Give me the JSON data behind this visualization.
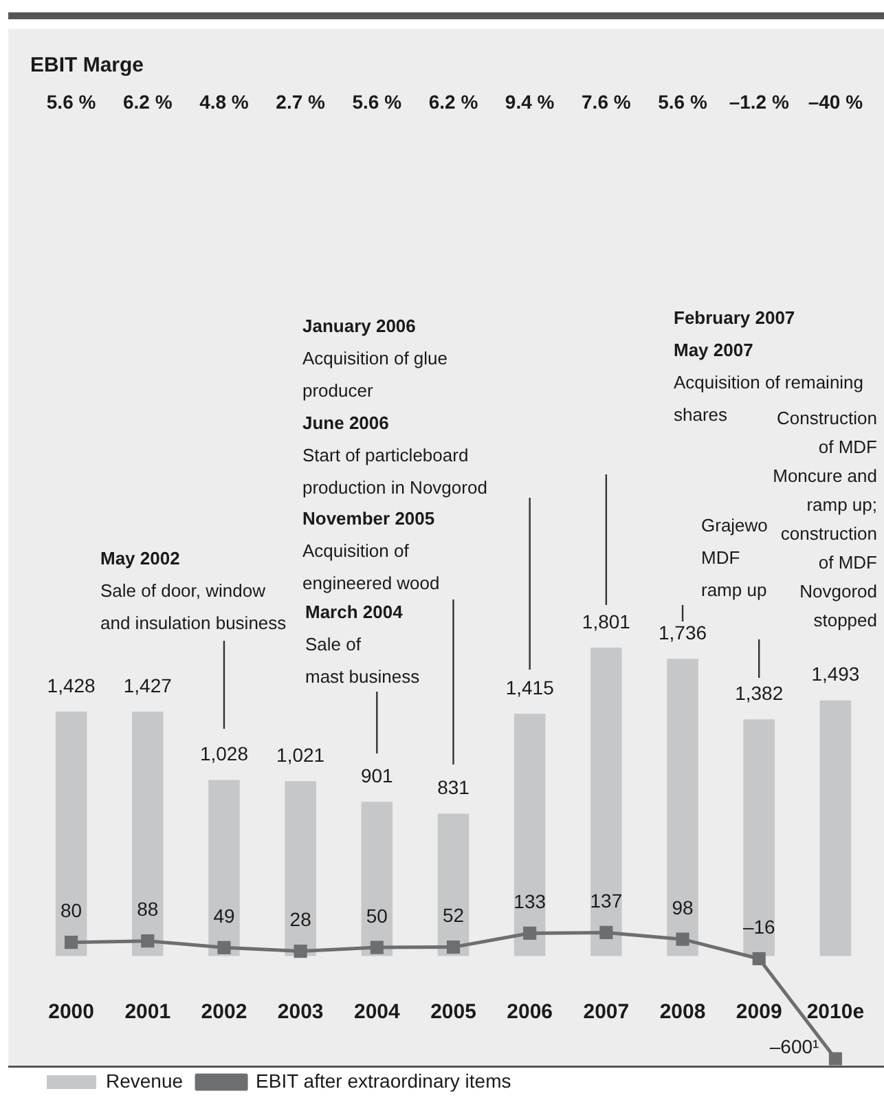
{
  "chart_data": {
    "type": "bar",
    "categories": [
      "2000",
      "2001",
      "2002",
      "2003",
      "2004",
      "2005",
      "2006",
      "2007",
      "2008",
      "2009",
      "2010e"
    ],
    "series": [
      {
        "name": "Revenue",
        "color": "#c6c7c9",
        "values": [
          1428,
          1427,
          1028,
          1021,
          901,
          831,
          1415,
          1801,
          1736,
          1382,
          1493
        ],
        "value_labels": [
          "1,428",
          "1,427",
          "1,028",
          "1,021",
          "901",
          "831",
          "1,415",
          "1,801",
          "1,736",
          "1,382",
          "1,493"
        ]
      },
      {
        "name": "EBIT after extraordinary items",
        "type": "line",
        "color": "#6d6e70",
        "values": [
          80,
          88,
          49,
          28,
          50,
          52,
          133,
          137,
          98,
          -16,
          -600
        ],
        "value_labels": [
          "80",
          "88",
          "49",
          "28",
          "50",
          "52",
          "133",
          "137",
          "98",
          "–16",
          "–600¹"
        ]
      }
    ],
    "tick_labels": "x",
    "legend": "bottom left",
    "marker": "square",
    "line_style": "solid",
    "annotations": [
      "EBIT Marge",
      "5.6 %",
      "6.2 %",
      "4.8 %",
      "2.7 %",
      "5.6 %",
      "6.2 %",
      "9.4 %",
      "7.6 %",
      "5.6 %",
      "–1.2 %",
      "–40 %",
      "May 2002\nSale of door, window\nand insulation business",
      "March 2004\nSale of\nmast business",
      "November 2005\nAcquisition of\nengineered wood",
      "January 2006\nAcquisition of glue\nproducer\nJune 2006\nStart of particleboard\nproduction in Novgorod",
      "February 2007\nMay 2007\nAcquisition of remaining\nshares",
      "Grajewo\nMDF\nramp up",
      "Construction\nof MDF\nMoncure and\nramp up;\nconstruction\nof MDF\nNovgorod\nstopped"
    ]
  }
}
